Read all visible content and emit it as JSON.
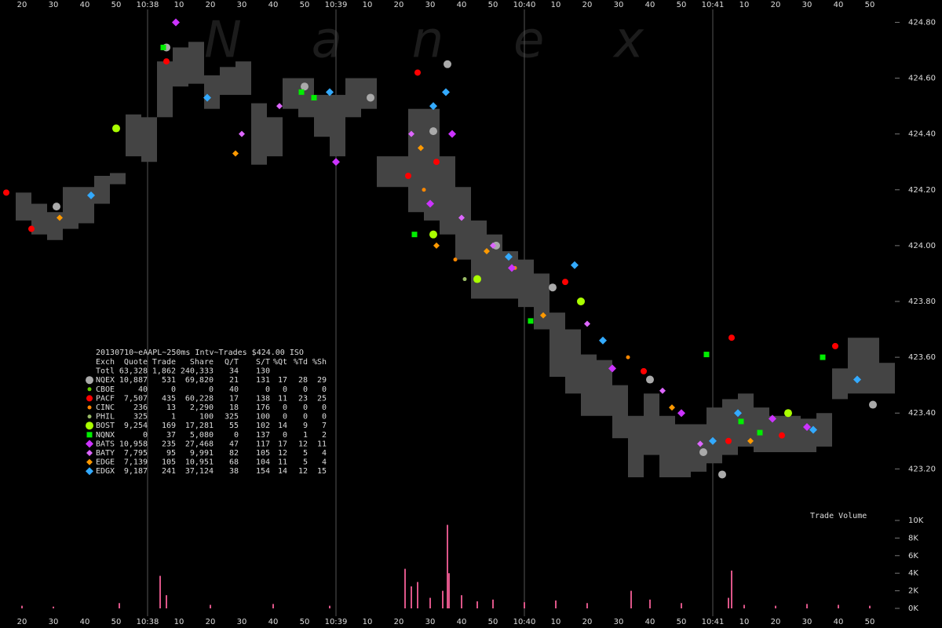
{
  "chart_data": {
    "type": "scatter",
    "watermark": "N a n e x",
    "xlim": [
      13,
      298
    ],
    "xticks": [
      20,
      30,
      40,
      50,
      {
        "value": 60,
        "label": "10:38"
      },
      {
        "value": 70,
        "label": "10"
      },
      {
        "value": 80,
        "label": "20"
      },
      {
        "value": 90,
        "label": "30"
      },
      {
        "value": 100,
        "label": "40"
      },
      {
        "value": 110,
        "label": "50"
      },
      {
        "value": 120,
        "label": "10:39"
      },
      {
        "value": 130,
        "label": "10"
      },
      {
        "value": 140,
        "label": "20"
      },
      {
        "value": 150,
        "label": "30"
      },
      {
        "value": 160,
        "label": "40"
      },
      {
        "value": 170,
        "label": "50"
      },
      {
        "value": 180,
        "label": "10:40"
      },
      {
        "value": 190,
        "label": "10"
      },
      {
        "value": 200,
        "label": "20"
      },
      {
        "value": 210,
        "label": "30"
      },
      {
        "value": 220,
        "label": "40"
      },
      {
        "value": 230,
        "label": "50"
      },
      {
        "value": 240,
        "label": "10:41"
      },
      {
        "value": 250,
        "label": "10"
      },
      {
        "value": 260,
        "label": "20"
      },
      {
        "value": 270,
        "label": "30"
      },
      {
        "value": 280,
        "label": "40"
      },
      {
        "value": 290,
        "label": "50"
      }
    ],
    "ylim": [
      423.08,
      424.88
    ],
    "yticks": [
      {
        "value": 423.2,
        "label": "423.20"
      },
      {
        "value": 423.4,
        "label": "423.40"
      },
      {
        "value": 423.6,
        "label": "423.60"
      },
      {
        "value": 423.8,
        "label": "423.80"
      },
      {
        "value": 424.0,
        "label": "424.00"
      },
      {
        "value": 424.2,
        "label": "424.20"
      },
      {
        "value": 424.4,
        "label": "424.40"
      },
      {
        "value": 424.6,
        "label": "424.60"
      },
      {
        "value": 424.8,
        "label": "424.80"
      }
    ],
    "quote_band": {
      "color": "#444444",
      "x": [
        18,
        23,
        28,
        33,
        38,
        43,
        48,
        53,
        58,
        63,
        68,
        73,
        78,
        83,
        88,
        93,
        98,
        103,
        108,
        113,
        118,
        123,
        128,
        133,
        138,
        143,
        148,
        153,
        158,
        163,
        168,
        173,
        178,
        183,
        188,
        193,
        198,
        203,
        208,
        213,
        218,
        223,
        228,
        233,
        238,
        243,
        248,
        253,
        258,
        263,
        268,
        273,
        278,
        283,
        288,
        293
      ],
      "high": [
        424.19,
        424.15,
        424.12,
        424.21,
        424.21,
        424.25,
        424.26,
        424.47,
        424.46,
        424.66,
        424.71,
        424.73,
        424.61,
        424.64,
        424.66,
        424.51,
        424.46,
        424.6,
        424.6,
        424.54,
        424.54,
        424.6,
        424.6,
        424.32,
        424.32,
        424.49,
        424.49,
        424.32,
        424.21,
        424.09,
        424.04,
        423.98,
        423.95,
        423.9,
        423.76,
        423.7,
        423.61,
        423.59,
        423.5,
        423.39,
        423.47,
        423.39,
        423.36,
        423.36,
        423.42,
        423.45,
        423.47,
        423.42,
        423.39,
        423.39,
        423.38,
        423.4,
        423.56,
        423.67,
        423.67,
        423.58
      ],
      "low": [
        424.09,
        424.04,
        424.02,
        424.06,
        424.08,
        424.15,
        424.22,
        424.32,
        424.3,
        424.46,
        424.57,
        424.58,
        424.49,
        424.54,
        424.54,
        424.29,
        424.32,
        424.49,
        424.46,
        424.39,
        424.32,
        424.46,
        424.49,
        424.21,
        424.21,
        424.12,
        424.09,
        424.04,
        423.95,
        423.81,
        423.81,
        423.81,
        423.78,
        423.7,
        423.53,
        423.47,
        423.39,
        423.39,
        423.31,
        423.17,
        423.25,
        423.17,
        423.17,
        423.19,
        423.22,
        423.25,
        423.28,
        423.26,
        423.26,
        423.26,
        423.26,
        423.28,
        423.45,
        423.47,
        423.47,
        423.47
      ]
    },
    "table": {
      "title": "20130710~eAAPL~250ms Intv~Trades $424.00 ISO",
      "columns": [
        "Exch",
        "Quote",
        "Trade",
        "Share",
        "Q/T",
        "S/T",
        "%Qt",
        "%Td",
        "%Sh"
      ],
      "total": [
        "Totl",
        "63,328",
        "1,862",
        "240,333",
        "34",
        "130"
      ]
    },
    "series": [
      {
        "name": "NQEX",
        "color": "#aaaaaa",
        "marker": "circle",
        "size": 5,
        "stats": [
          "10,887",
          "531",
          "69,820",
          "21",
          "131",
          "17",
          "28",
          "29"
        ],
        "x": [
          31,
          66,
          110,
          131,
          151,
          155.5,
          171,
          189,
          220,
          237,
          243,
          291
        ],
        "values": [
          424.14,
          424.71,
          424.57,
          424.53,
          424.41,
          424.65,
          424.0,
          423.85,
          423.52,
          423.26,
          423.18,
          423.43
        ]
      },
      {
        "name": "CBOE",
        "color": "#66cc00",
        "marker": "circle",
        "size": 2.5,
        "stats": [
          "40",
          "0",
          "0",
          "40",
          "0",
          "0",
          "0",
          "0"
        ],
        "x": [],
        "values": []
      },
      {
        "name": "PACF",
        "color": "#ff0000",
        "marker": "circle",
        "size": 4,
        "stats": [
          "7,507",
          "435",
          "60,228",
          "17",
          "138",
          "11",
          "23",
          "25"
        ],
        "x": [
          15,
          23,
          66,
          143,
          146,
          152,
          193,
          218,
          245,
          246,
          262,
          279
        ],
        "values": [
          424.19,
          424.06,
          424.66,
          424.25,
          424.62,
          424.3,
          423.87,
          423.55,
          423.3,
          423.67,
          423.32,
          423.64
        ]
      },
      {
        "name": "CINC",
        "color": "#ff8800",
        "marker": "circle",
        "size": 2.5,
        "stats": [
          "236",
          "13",
          "2,290",
          "18",
          "176",
          "0",
          "0",
          "0"
        ],
        "x": [
          148,
          158,
          177,
          213
        ],
        "values": [
          424.2,
          423.95,
          423.92,
          423.6
        ]
      },
      {
        "name": "PHIL",
        "color": "#99bb66",
        "marker": "circle",
        "size": 2.5,
        "stats": [
          "325",
          "1",
          "100",
          "325",
          "100",
          "0",
          "0",
          "0"
        ],
        "x": [
          161
        ],
        "values": [
          423.88
        ]
      },
      {
        "name": "BOST",
        "color": "#aaff00",
        "marker": "circle",
        "size": 5,
        "stats": [
          "9,254",
          "169",
          "17,281",
          "55",
          "102",
          "14",
          "9",
          "7"
        ],
        "x": [
          50,
          151,
          165,
          198,
          264
        ],
        "values": [
          424.42,
          424.04,
          423.88,
          423.8,
          423.4
        ]
      },
      {
        "name": "NQNX",
        "color": "#00ee00",
        "marker": "square",
        "size": 3.5,
        "stats": [
          "0",
          "37",
          "5,080",
          "0",
          "137",
          "0",
          "1",
          "2"
        ],
        "x": [
          65,
          109,
          113,
          145,
          182,
          238,
          249,
          255,
          275
        ],
        "values": [
          424.71,
          424.55,
          424.53,
          424.04,
          423.73,
          423.61,
          423.37,
          423.33,
          423.6
        ]
      },
      {
        "name": "BATS",
        "color": "#cc33ff",
        "marker": "diamond",
        "size": 5,
        "stats": [
          "10,958",
          "235",
          "27,468",
          "47",
          "117",
          "17",
          "12",
          "11"
        ],
        "x": [
          69,
          120,
          150,
          157,
          176,
          208,
          230,
          259,
          270
        ],
        "values": [
          424.8,
          424.3,
          424.15,
          424.4,
          423.92,
          423.56,
          423.4,
          423.38,
          423.35
        ]
      },
      {
        "name": "BATY",
        "color": "#dd66ff",
        "marker": "diamond",
        "size": 4,
        "stats": [
          "7,795",
          "95",
          "9,991",
          "82",
          "105",
          "12",
          "5",
          "4"
        ],
        "x": [
          90,
          102,
          144,
          160,
          170,
          200,
          224,
          236
        ],
        "values": [
          424.4,
          424.5,
          424.4,
          424.1,
          424.0,
          423.72,
          423.48,
          423.29
        ]
      },
      {
        "name": "EDGE",
        "color": "#ff9900",
        "marker": "diamond",
        "size": 4,
        "stats": [
          "7,139",
          "105",
          "10,951",
          "68",
          "104",
          "11",
          "5",
          "4"
        ],
        "x": [
          32,
          88,
          147,
          152,
          168,
          186,
          227,
          252
        ],
        "values": [
          424.1,
          424.33,
          424.35,
          424.0,
          423.98,
          423.75,
          423.42,
          423.3
        ]
      },
      {
        "name": "EDGX",
        "color": "#33aaff",
        "marker": "diamond",
        "size": 5,
        "stats": [
          "9,187",
          "241",
          "37,124",
          "38",
          "154",
          "14",
          "12",
          "15"
        ],
        "x": [
          42,
          79,
          118,
          151,
          155,
          175,
          196,
          205,
          240,
          248,
          272,
          286
        ],
        "values": [
          424.18,
          424.53,
          424.55,
          424.5,
          424.55,
          423.96,
          423.93,
          423.66,
          423.3,
          423.4,
          423.34,
          423.52
        ]
      }
    ],
    "volume": {
      "title": "Trade Volume",
      "color": "#dd5588",
      "ylim": [
        0,
        10000
      ],
      "yticks": [
        {
          "value": 0,
          "label": "0K"
        },
        {
          "value": 2000,
          "label": "2K"
        },
        {
          "value": 4000,
          "label": "4K"
        },
        {
          "value": 6000,
          "label": "6K"
        },
        {
          "value": 8000,
          "label": "8K"
        },
        {
          "value": 10000,
          "label": "10K"
        }
      ],
      "x": [
        20,
        30,
        51,
        64,
        66,
        80,
        100,
        118,
        142,
        144,
        146,
        150,
        154,
        155.5,
        156,
        160,
        165,
        170,
        180,
        190,
        200,
        214,
        220,
        230,
        245,
        246,
        250,
        260,
        270,
        280,
        290
      ],
      "values": [
        300,
        200,
        600,
        3700,
        1500,
        400,
        500,
        300,
        4500,
        2500,
        3000,
        1200,
        2000,
        9500,
        4000,
        1500,
        800,
        1000,
        700,
        900,
        600,
        2000,
        1000,
        600,
        1200,
        4300,
        400,
        300,
        500,
        400,
        300
      ]
    }
  }
}
